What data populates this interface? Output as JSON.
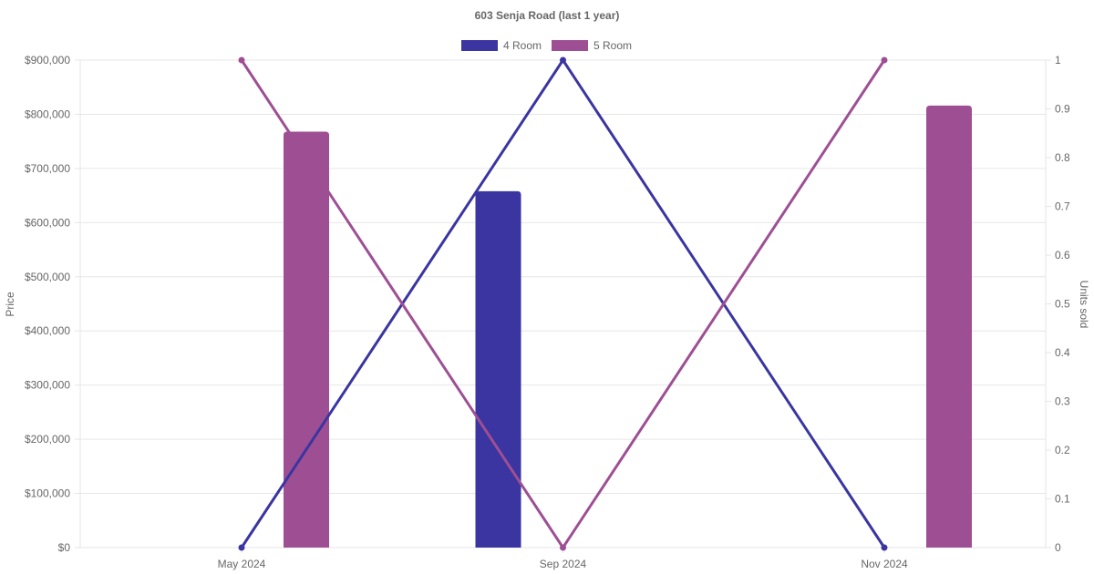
{
  "chart_data": {
    "type": "bar",
    "title": "603 Senja Road (last 1 year)",
    "categories": [
      "May 2024",
      "Sep 2024",
      "Nov 2024"
    ],
    "y_left": {
      "label": "Price",
      "min": 0,
      "max": 900000,
      "step": 100000,
      "tick_labels": [
        "$0",
        "$100,000",
        "$200,000",
        "$300,000",
        "$400,000",
        "$500,000",
        "$600,000",
        "$700,000",
        "$800,000",
        "$900,000"
      ]
    },
    "y_right": {
      "label": "Units sold",
      "min": 0,
      "max": 1,
      "step": 0.1,
      "tick_labels": [
        "0",
        "0.1",
        "0.2",
        "0.3",
        "0.4",
        "0.5",
        "0.6",
        "0.7",
        "0.8",
        "0.9",
        "1"
      ]
    },
    "grid": true,
    "legend_position": "top-center",
    "series": [
      {
        "name": "4 Room",
        "color": "#3a35a0",
        "price": [
          null,
          658000,
          null
        ],
        "units_sold": [
          0,
          1,
          0
        ]
      },
      {
        "name": "5 Room",
        "color": "#9e4f94",
        "price": [
          768000,
          null,
          816000
        ],
        "units_sold": [
          1,
          0,
          1
        ]
      }
    ]
  }
}
